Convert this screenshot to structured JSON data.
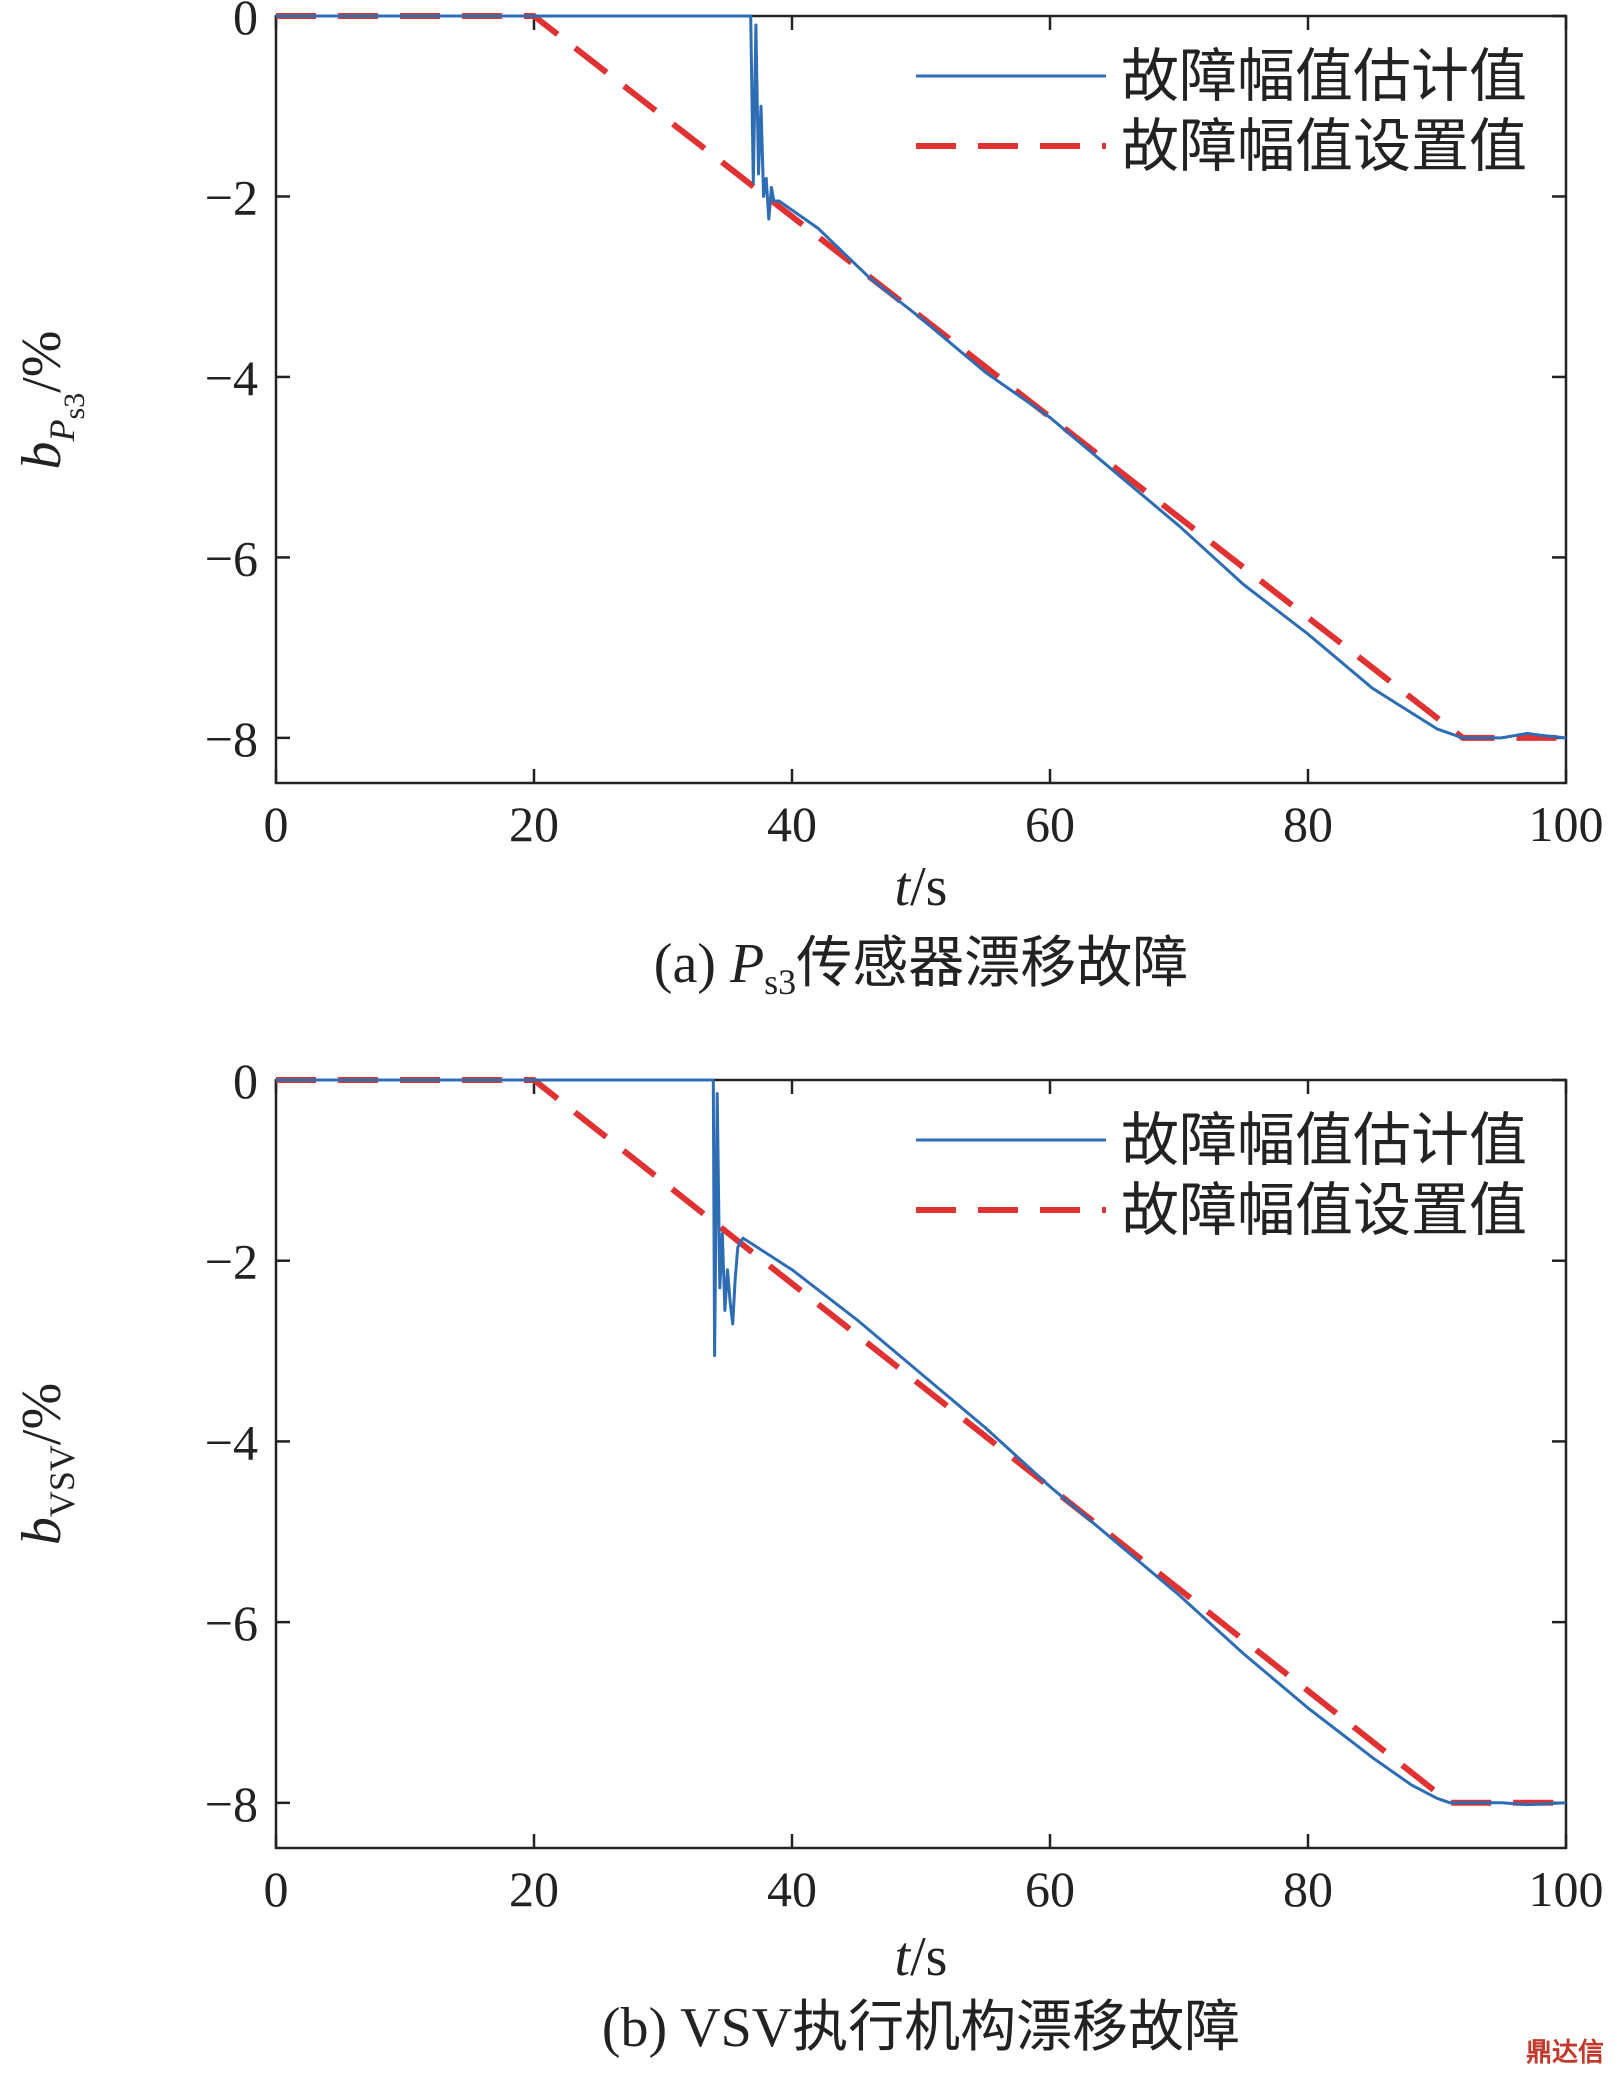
{
  "watermark": "鼎达信",
  "colors": {
    "estimate": "#2e6db4",
    "setpoint": "#e03232",
    "axis": "#222222"
  },
  "chart_data": [
    {
      "type": "line",
      "caption": {
        "prefix": "(a) ",
        "italic": "P",
        "sub": "s3",
        "suffix": "传感器漂移故障"
      },
      "xlabel": {
        "italic": "t",
        "rest": "/s"
      },
      "ylabel": {
        "italic": "b",
        "sub_italic": "P",
        "sub": "s3",
        "rest": "/%"
      },
      "xlim": [
        0,
        100
      ],
      "ylim": [
        -8.5,
        0
      ],
      "xticks": [
        0,
        20,
        40,
        60,
        80,
        100
      ],
      "yticks": [
        0,
        -2,
        -4,
        -6,
        -8
      ],
      "xticklabels": [
        "0",
        "20",
        "40",
        "60",
        "80",
        "100"
      ],
      "yticklabels": [
        "0",
        "−2",
        "−4",
        "−6",
        "−8"
      ],
      "legend_position": "top-right",
      "series": [
        {
          "name": "故障幅值估计值",
          "style": "solid",
          "x": [
            0,
            36.8,
            37.0,
            37.2,
            37.4,
            37.6,
            37.8,
            38.0,
            38.2,
            38.4,
            38.6,
            39,
            42,
            46,
            50,
            55,
            60,
            65,
            70,
            75,
            80,
            85,
            90,
            92,
            95,
            97,
            98,
            100
          ],
          "y": [
            0,
            0,
            -1.85,
            -0.1,
            -1.75,
            -1.0,
            -2.0,
            -1.8,
            -2.25,
            -1.9,
            -2.05,
            -2.05,
            -2.35,
            -2.9,
            -3.35,
            -3.95,
            -4.45,
            -5.05,
            -5.65,
            -6.3,
            -6.85,
            -7.45,
            -7.9,
            -8.0,
            -8.0,
            -7.95,
            -7.97,
            -8.0
          ]
        },
        {
          "name": "故障幅值设置值",
          "style": "dashed",
          "x": [
            0,
            20,
            92,
            100
          ],
          "y": [
            0,
            0,
            -8,
            -8
          ]
        }
      ]
    },
    {
      "type": "line",
      "caption": {
        "prefix": "(b) ",
        "italic": "",
        "sub": "",
        "suffix": "VSV执行机构漂移故障"
      },
      "xlabel": {
        "italic": "t",
        "rest": "/s"
      },
      "ylabel": {
        "italic": "b",
        "sub_italic": "",
        "sub": "VSV",
        "rest": "/%"
      },
      "xlim": [
        0,
        100
      ],
      "ylim": [
        -8.5,
        0
      ],
      "xticks": [
        0,
        20,
        40,
        60,
        80,
        100
      ],
      "yticks": [
        0,
        -2,
        -4,
        -6,
        -8
      ],
      "xticklabels": [
        "0",
        "20",
        "40",
        "60",
        "80",
        "100"
      ],
      "yticklabels": [
        "0",
        "−2",
        "−4",
        "−6",
        "−8"
      ],
      "legend_position": "top-right",
      "series": [
        {
          "name": "故障幅值估计值",
          "style": "solid",
          "x": [
            0,
            33.9,
            34.0,
            34.2,
            34.4,
            34.6,
            34.8,
            35.0,
            35.2,
            35.4,
            35.6,
            35.8,
            36.2,
            40,
            45,
            50,
            55,
            60,
            65,
            70,
            75,
            80,
            85,
            88,
            90,
            91,
            93,
            95,
            97,
            100
          ],
          "y": [
            0,
            0,
            -3.05,
            -0.15,
            -2.3,
            -1.7,
            -2.55,
            -2.1,
            -2.45,
            -2.7,
            -2.2,
            -1.85,
            -1.75,
            -2.1,
            -2.65,
            -3.25,
            -3.85,
            -4.5,
            -5.1,
            -5.7,
            -6.35,
            -6.95,
            -7.5,
            -7.8,
            -7.95,
            -8.0,
            -8.0,
            -8.0,
            -8.02,
            -8.0
          ]
        },
        {
          "name": "故障幅值设置值",
          "style": "dashed",
          "x": [
            0,
            20,
            91,
            100
          ],
          "y": [
            0,
            0,
            -8,
            -8
          ]
        }
      ]
    }
  ]
}
